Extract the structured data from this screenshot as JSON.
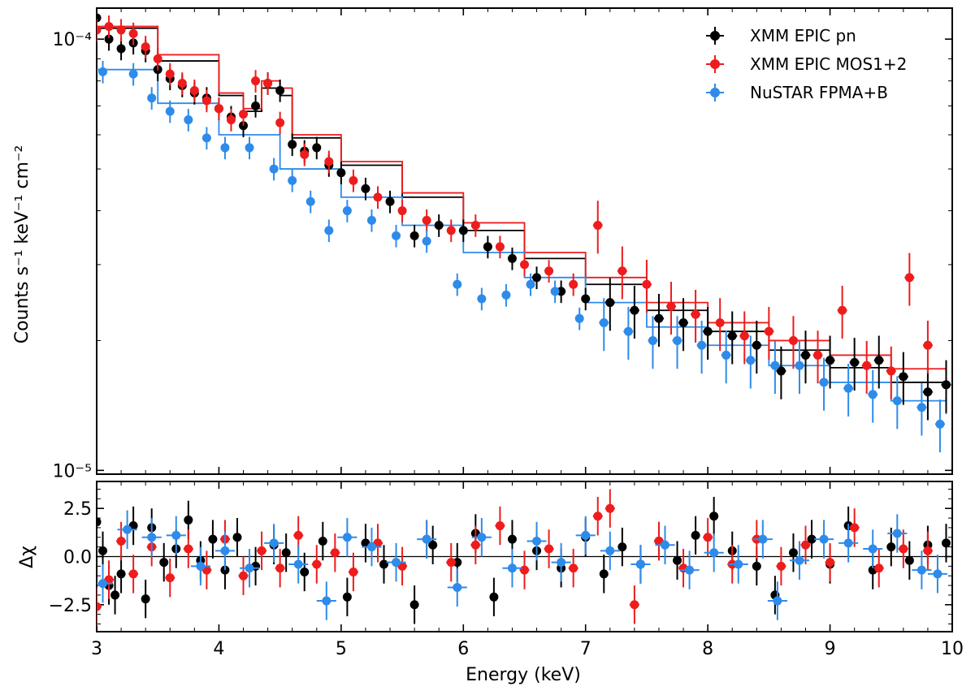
{
  "chart_data": [
    {
      "type": "scatter",
      "panel": "spectrum",
      "ylabel": "Counts s⁻¹ keV⁻¹ cm⁻²",
      "yscale": "log",
      "xlim": [
        3,
        10
      ],
      "ylim": [
        9.8e-06,
        0.000118
      ],
      "y_tick_labels": [
        "10⁻⁴",
        "10⁻⁵"
      ],
      "legend_position": "top-right",
      "series": [
        {
          "name": "XMM EPIC pn",
          "color": "#000000",
          "x": [
            3.0,
            3.1,
            3.2,
            3.3,
            3.4,
            3.5,
            3.6,
            3.7,
            3.8,
            3.9,
            4.0,
            4.1,
            4.2,
            4.3,
            4.4,
            4.5,
            4.6,
            4.7,
            4.8,
            4.9,
            5.0,
            5.2,
            5.4,
            5.6,
            5.8,
            6.0,
            6.2,
            6.4,
            6.6,
            6.8,
            7.0,
            7.2,
            7.4,
            7.6,
            7.8,
            8.0,
            8.2,
            8.4,
            8.6,
            8.8,
            9.0,
            9.2,
            9.4,
            9.6,
            9.8,
            9.95
          ],
          "y": [
            0.000112,
            0.0001,
            9.5e-05,
            9.8e-05,
            9.4e-05,
            8.5e-05,
            8.1e-05,
            7.8e-05,
            7.5e-05,
            7.3e-05,
            6.9e-05,
            6.6e-05,
            6.3e-05,
            7e-05,
            7.9e-05,
            7.6e-05,
            5.7e-05,
            5.5e-05,
            5.6e-05,
            5.1e-05,
            4.9e-05,
            4.5e-05,
            4.2e-05,
            3.5e-05,
            3.7e-05,
            3.6e-05,
            3.3e-05,
            3.1e-05,
            2.8e-05,
            2.6e-05,
            2.5e-05,
            2.45e-05,
            2.35e-05,
            2.25e-05,
            2.2e-05,
            2.1e-05,
            2.05e-05,
            1.95e-05,
            1.7e-05,
            1.85e-05,
            1.8e-05,
            1.78e-05,
            1.8e-05,
            1.65e-05,
            1.52e-05,
            1.58e-05
          ],
          "model": [
            [
              3.0,
              0.000106
            ],
            [
              3.5,
              8.9e-05
            ],
            [
              4.0,
              7.4e-05
            ],
            [
              4.2,
              6.8e-05
            ],
            [
              4.35,
              7.7e-05
            ],
            [
              4.5,
              7.4e-05
            ],
            [
              4.6,
              5.9e-05
            ],
            [
              5.0,
              5.1e-05
            ],
            [
              5.5,
              4.3e-05
            ],
            [
              6.0,
              3.6e-05
            ],
            [
              6.5,
              3.1e-05
            ],
            [
              7.0,
              2.7e-05
            ],
            [
              7.5,
              2.35e-05
            ],
            [
              8.0,
              2.1e-05
            ],
            [
              8.5,
              1.9e-05
            ],
            [
              9.0,
              1.73e-05
            ],
            [
              9.5,
              1.6e-05
            ],
            [
              9.95,
              1.5e-05
            ]
          ]
        },
        {
          "name": "XMM EPIC MOS1+2",
          "color": "#ee1c1c",
          "x": [
            3.0,
            3.1,
            3.2,
            3.3,
            3.4,
            3.5,
            3.6,
            3.7,
            3.8,
            3.9,
            4.0,
            4.1,
            4.2,
            4.3,
            4.4,
            4.5,
            4.7,
            4.9,
            5.1,
            5.3,
            5.5,
            5.7,
            5.9,
            6.1,
            6.3,
            6.5,
            6.7,
            6.9,
            7.1,
            7.3,
            7.5,
            7.7,
            7.9,
            8.1,
            8.3,
            8.5,
            8.7,
            8.9,
            9.1,
            9.3,
            9.5,
            9.65,
            9.8
          ],
          "y": [
            0.000105,
            0.000107,
            0.000105,
            0.000103,
            9.6e-05,
            9e-05,
            8.3e-05,
            7.9e-05,
            7.6e-05,
            7.2e-05,
            6.9e-05,
            6.5e-05,
            6.7e-05,
            8e-05,
            7.9e-05,
            6.4e-05,
            5.4e-05,
            5.2e-05,
            4.7e-05,
            4.3e-05,
            4e-05,
            3.8e-05,
            3.6e-05,
            3.7e-05,
            3.3e-05,
            3e-05,
            2.9e-05,
            2.7e-05,
            3.7e-05,
            2.9e-05,
            2.7e-05,
            2.4e-05,
            2.3e-05,
            2.2e-05,
            2.05e-05,
            2.1e-05,
            2e-05,
            1.85e-05,
            2.35e-05,
            1.75e-05,
            1.7e-05,
            2.8e-05,
            1.95e-05
          ],
          "model": [
            [
              3.0,
              0.000107
            ],
            [
              3.5,
              9.2e-05
            ],
            [
              4.0,
              7.5e-05
            ],
            [
              4.2,
              6.9e-05
            ],
            [
              4.35,
              8e-05
            ],
            [
              4.5,
              7.7e-05
            ],
            [
              4.6,
              6e-05
            ],
            [
              5.0,
              5.2e-05
            ],
            [
              5.5,
              4.4e-05
            ],
            [
              6.0,
              3.75e-05
            ],
            [
              6.5,
              3.2e-05
            ],
            [
              7.0,
              2.8e-05
            ],
            [
              7.5,
              2.45e-05
            ],
            [
              8.0,
              2.2e-05
            ],
            [
              8.5,
              2e-05
            ],
            [
              9.0,
              1.85e-05
            ],
            [
              9.5,
              1.72e-05
            ],
            [
              9.95,
              1.62e-05
            ]
          ]
        },
        {
          "name": "NuSTAR FPMA+B",
          "color": "#2e8bea",
          "x": [
            3.05,
            3.3,
            3.45,
            3.6,
            3.75,
            3.9,
            4.05,
            4.25,
            4.45,
            4.6,
            4.75,
            4.9,
            5.05,
            5.25,
            5.45,
            5.7,
            5.95,
            6.15,
            6.35,
            6.55,
            6.75,
            6.95,
            7.15,
            7.35,
            7.55,
            7.75,
            7.95,
            8.15,
            8.35,
            8.55,
            8.75,
            8.95,
            9.15,
            9.35,
            9.55,
            9.75,
            9.9
          ],
          "y": [
            8.4e-05,
            8.3e-05,
            7.3e-05,
            6.8e-05,
            6.5e-05,
            5.9e-05,
            5.6e-05,
            5.6e-05,
            5e-05,
            4.7e-05,
            4.2e-05,
            3.6e-05,
            4e-05,
            3.8e-05,
            3.5e-05,
            3.4e-05,
            2.7e-05,
            2.5e-05,
            2.55e-05,
            2.7e-05,
            2.6e-05,
            2.25e-05,
            2.2e-05,
            2.1e-05,
            2e-05,
            2e-05,
            1.95e-05,
            1.85e-05,
            1.8e-05,
            1.75e-05,
            1.75e-05,
            1.6e-05,
            1.55e-05,
            1.5e-05,
            1.45e-05,
            1.4e-05,
            1.28e-05
          ],
          "model": [
            [
              3.0,
              8.5e-05
            ],
            [
              3.5,
              7.1e-05
            ],
            [
              4.0,
              6e-05
            ],
            [
              4.5,
              5e-05
            ],
            [
              5.0,
              4.3e-05
            ],
            [
              5.5,
              3.7e-05
            ],
            [
              6.0,
              3.2e-05
            ],
            [
              6.5,
              2.8e-05
            ],
            [
              7.0,
              2.45e-05
            ],
            [
              7.5,
              2.15e-05
            ],
            [
              8.0,
              1.95e-05
            ],
            [
              8.5,
              1.75e-05
            ],
            [
              9.0,
              1.6e-05
            ],
            [
              9.5,
              1.45e-05
            ],
            [
              9.95,
              1.35e-05
            ]
          ]
        }
      ]
    },
    {
      "type": "scatter",
      "panel": "residuals",
      "xlabel": "Energy (keV)",
      "ylabel": "Δχ",
      "xlim": [
        3,
        10
      ],
      "ylim": [
        -3.9,
        3.9
      ],
      "x_ticks": [
        3,
        4,
        5,
        6,
        7,
        8,
        9,
        10
      ],
      "y_ticks": [
        -2.5,
        0.0,
        2.5
      ],
      "y_tick_labels": [
        "−2.5",
        "0.0",
        "2.5"
      ],
      "series": [
        {
          "name": "XMM EPIC pn",
          "color": "#000000",
          "x": [
            3.0,
            3.05,
            3.1,
            3.15,
            3.2,
            3.3,
            3.4,
            3.45,
            3.55,
            3.65,
            3.75,
            3.85,
            3.95,
            4.05,
            4.15,
            4.3,
            4.45,
            4.55,
            4.7,
            4.85,
            5.05,
            5.2,
            5.35,
            5.6,
            5.75,
            5.95,
            6.1,
            6.25,
            6.4,
            6.6,
            6.8,
            7.0,
            7.15,
            7.3,
            7.45,
            7.6,
            7.75,
            7.9,
            8.05,
            8.2,
            8.4,
            8.55,
            8.7,
            8.85,
            9.0,
            9.15,
            9.35,
            9.5,
            9.65,
            9.8,
            9.95
          ],
          "y": [
            1.8,
            0.3,
            -1.5,
            -2.0,
            -0.9,
            1.6,
            -2.2,
            1.5,
            -0.3,
            0.4,
            1.9,
            -0.2,
            0.9,
            -0.7,
            1.0,
            -0.5,
            0.6,
            0.2,
            -0.8,
            0.8,
            -2.1,
            0.7,
            -0.4,
            -2.5,
            0.6,
            -0.3,
            1.2,
            -2.1,
            0.9,
            0.3,
            -0.6,
            1.0,
            -0.9,
            0.5,
            -0.4,
            0.8,
            -0.2,
            1.1,
            2.1,
            0.3,
            -0.5,
            -2.0,
            0.2,
            0.9,
            -0.4,
            1.6,
            -0.7,
            0.5,
            -0.2,
            0.6,
            0.7
          ],
          "xerr": 0.03,
          "yerr": 1.0
        },
        {
          "name": "XMM EPIC MOS1+2",
          "color": "#ee1c1c",
          "x": [
            3.0,
            3.1,
            3.2,
            3.3,
            3.45,
            3.6,
            3.75,
            3.9,
            4.05,
            4.2,
            4.35,
            4.5,
            4.65,
            4.8,
            4.95,
            5.1,
            5.3,
            5.5,
            5.7,
            5.9,
            6.1,
            6.3,
            6.5,
            6.7,
            6.9,
            7.1,
            7.2,
            7.4,
            7.6,
            7.8,
            8.0,
            8.2,
            8.4,
            8.6,
            8.8,
            9.0,
            9.2,
            9.4,
            9.6,
            9.8
          ],
          "y": [
            -2.6,
            -1.2,
            0.8,
            -0.9,
            0.5,
            -1.1,
            0.4,
            -0.7,
            0.9,
            -1.0,
            0.3,
            -0.6,
            1.1,
            -0.4,
            0.2,
            -0.8,
            0.7,
            -0.5,
            0.9,
            -0.3,
            0.6,
            1.6,
            -0.7,
            0.4,
            -0.6,
            2.1,
            2.5,
            -2.5,
            0.8,
            -0.6,
            1.0,
            -0.4,
            0.9,
            -0.5,
            0.6,
            -0.3,
            1.5,
            -0.6,
            0.4,
            0.3
          ],
          "xerr": 0.04,
          "yerr": 1.0
        },
        {
          "name": "NuSTAR FPMA+B",
          "color": "#2e8bea",
          "x": [
            3.05,
            3.25,
            3.45,
            3.65,
            3.85,
            4.05,
            4.25,
            4.45,
            4.65,
            4.88,
            5.05,
            5.25,
            5.45,
            5.7,
            5.95,
            6.15,
            6.4,
            6.6,
            6.8,
            7.0,
            7.2,
            7.45,
            7.65,
            7.85,
            8.05,
            8.25,
            8.45,
            8.57,
            8.75,
            8.95,
            9.15,
            9.35,
            9.55,
            9.75,
            9.88
          ],
          "y": [
            -1.4,
            1.4,
            1.0,
            1.1,
            -0.5,
            0.3,
            -0.6,
            0.7,
            -0.4,
            -2.3,
            1.0,
            0.5,
            -0.3,
            0.9,
            -1.6,
            1.0,
            -0.6,
            0.8,
            -0.3,
            1.1,
            0.3,
            -0.4,
            0.6,
            -0.7,
            0.2,
            -0.4,
            0.9,
            -2.3,
            -0.2,
            0.9,
            0.7,
            0.4,
            1.2,
            -0.7,
            -0.9
          ],
          "xerr": 0.08,
          "yerr": 1.0
        }
      ]
    }
  ]
}
